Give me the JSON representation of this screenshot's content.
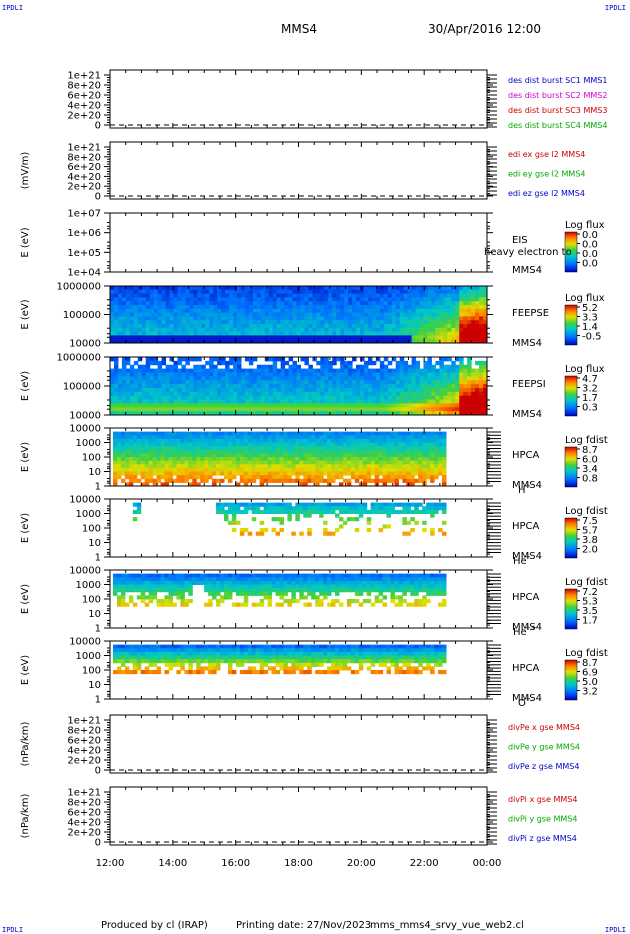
{
  "header": {
    "corner_tl": "IPDLI",
    "corner_tr": "IPDLI",
    "corner_bl": "IPDLI",
    "corner_br": "IPDLI",
    "spacecraft": "MMS4",
    "datetime": "30/Apr/2016 12:00"
  },
  "footer": {
    "produced": "Produced by cl (IRAP)",
    "printing": "Printing date: 27/Nov/2023",
    "script": "mms_mms4_srvy_vue_web2.cl"
  },
  "colors": {
    "blue": "#0000cc",
    "magenta": "#cc00cc",
    "red": "#cc0000",
    "green": "#00aa00"
  },
  "chart_data": [
    {
      "type": "line",
      "panel": "des-dist",
      "ylabel": "",
      "yticks": [
        "1e+21",
        "8e+20",
        "6e+20",
        "4e+20",
        "2e+20",
        "0"
      ],
      "ylim": [
        0,
        1e+21
      ],
      "series": [
        {
          "name": "des dist burst SC1 MMS1",
          "color": "#0000cc"
        },
        {
          "name": "des dist burst SC2 MMS2",
          "color": "#cc00cc"
        },
        {
          "name": "des dist burst SC3 MMS3",
          "color": "#cc0000"
        },
        {
          "name": "des dist burst SC4 MMS4",
          "color": "#00aa00"
        }
      ]
    },
    {
      "type": "line",
      "panel": "edi-e",
      "ylabel": "(mV/m)",
      "yticks": [
        "1e+21",
        "8e+20",
        "6e+20",
        "4e+20",
        "2e+20",
        "0"
      ],
      "ylim": [
        0,
        1e+21
      ],
      "series": [
        {
          "name": "edi ex gse l2 MMS4",
          "color": "#cc0000"
        },
        {
          "name": "edi ey gse l2 MMS4",
          "color": "#00aa00"
        },
        {
          "name": "edi ez gse l2 MMS4",
          "color": "#0000cc"
        }
      ]
    },
    {
      "type": "heatmap",
      "panel": "eis",
      "ylabel": "E (eV)",
      "yticks": [
        "1e+07",
        "1e+06",
        "1e+05",
        "1e+04"
      ],
      "instrument": [
        "EIS",
        "MMS4"
      ],
      "overlay_text": "heavy electron to",
      "cbar_label": "Log flux",
      "cbar_ticks": [
        "0.0",
        "0.0",
        "0.0",
        "0.0"
      ]
    },
    {
      "type": "heatmap",
      "panel": "feepse",
      "ylabel": "E (eV)",
      "yticks": [
        "1000000",
        "100000",
        "10000"
      ],
      "instrument": [
        "FEEPSE",
        "MMS4"
      ],
      "cbar_label": "Log flux",
      "cbar_ticks": [
        "5.2",
        "3.3",
        "1.4",
        "-0.5"
      ]
    },
    {
      "type": "heatmap",
      "panel": "feepsi",
      "ylabel": "E (eV)",
      "yticks": [
        "1000000",
        "100000",
        "10000"
      ],
      "instrument": [
        "FEEPSI",
        "MMS4"
      ],
      "cbar_label": "Log flux",
      "cbar_ticks": [
        "4.7",
        "3.2",
        "1.7",
        "0.3"
      ]
    },
    {
      "type": "heatmap",
      "panel": "hpca-h",
      "ylabel": "E (eV)",
      "yticks": [
        "10000",
        "1000",
        "100",
        "10",
        "1"
      ],
      "instrument": [
        "HPCA",
        "MMS4"
      ],
      "species": "H",
      "species_sup": "+",
      "cbar_label": "Log fdist",
      "cbar_ticks": [
        "8.7",
        "6.0",
        "3.4",
        "0.8"
      ]
    },
    {
      "type": "heatmap",
      "panel": "hpca-he",
      "ylabel": "E (eV)",
      "yticks": [
        "10000",
        "1000",
        "100",
        "10",
        "1"
      ],
      "instrument": [
        "HPCA",
        "MMS4"
      ],
      "species": "He",
      "species_sup": "+",
      "cbar_label": "Log fdist",
      "cbar_ticks": [
        "7.5",
        "5.7",
        "3.8",
        "2.0"
      ]
    },
    {
      "type": "heatmap",
      "panel": "hpca-he2",
      "ylabel": "E (eV)",
      "yticks": [
        "10000",
        "1000",
        "100",
        "10",
        "1"
      ],
      "instrument": [
        "HPCA",
        "MMS4"
      ],
      "species": "He",
      "species_sup": "++",
      "cbar_label": "Log fdist",
      "cbar_ticks": [
        "7.2",
        "5.3",
        "3.5",
        "1.7"
      ]
    },
    {
      "type": "heatmap",
      "panel": "hpca-o",
      "ylabel": "E (eV)",
      "yticks": [
        "10000",
        "1000",
        "100",
        "10",
        "1"
      ],
      "instrument": [
        "HPCA",
        "MMS4"
      ],
      "species": "O",
      "species_sup": "+",
      "cbar_label": "Log fdist",
      "cbar_ticks": [
        "8.7",
        "6.9",
        "5.0",
        "3.2"
      ]
    },
    {
      "type": "line",
      "panel": "divpe",
      "ylabel": "(nPa/km)",
      "yticks": [
        "1e+21",
        "8e+20",
        "6e+20",
        "4e+20",
        "2e+20",
        "0"
      ],
      "ylim": [
        0,
        1e+21
      ],
      "series": [
        {
          "name": "divPe x gse MMS4",
          "color": "#cc0000"
        },
        {
          "name": "divPe y gse MMS4",
          "color": "#00aa00"
        },
        {
          "name": "divPe z gse MMS4",
          "color": "#0000cc"
        }
      ]
    },
    {
      "type": "line",
      "panel": "divpi",
      "ylabel": "(nPa/km)",
      "yticks": [
        "1e+21",
        "8e+20",
        "6e+20",
        "4e+20",
        "2e+20",
        "0"
      ],
      "ylim": [
        0,
        1e+21
      ],
      "series": [
        {
          "name": "divPi x gse MMS4",
          "color": "#cc0000"
        },
        {
          "name": "divPi y gse MMS4",
          "color": "#00aa00"
        },
        {
          "name": "divPi z gse MMS4",
          "color": "#0000cc"
        }
      ]
    }
  ],
  "xaxis": {
    "ticks": [
      "12:00",
      "14:00",
      "16:00",
      "18:00",
      "20:00",
      "22:00",
      "00:00"
    ]
  }
}
